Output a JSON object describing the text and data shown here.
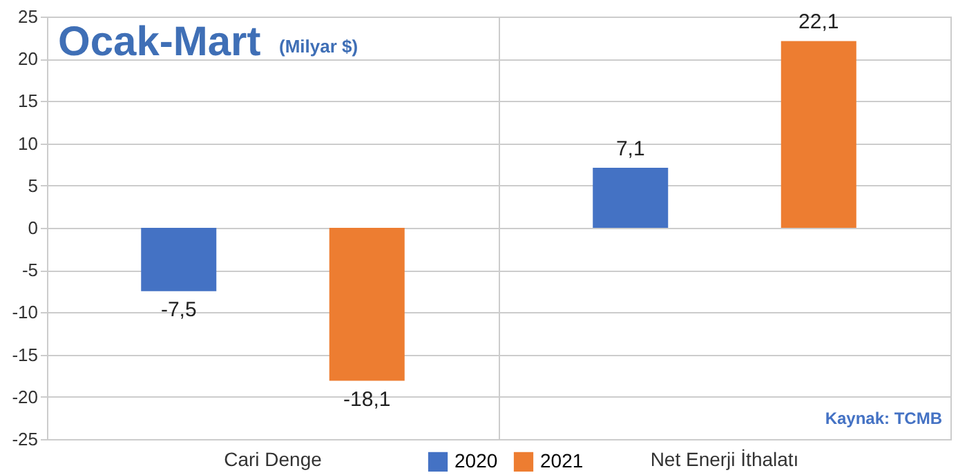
{
  "chart_data": {
    "type": "bar",
    "title": "Ocak-Mart",
    "subtitle": "(Milyar $)",
    "categories": [
      "Cari Denge",
      "Net Enerji İthalatı"
    ],
    "series": [
      {
        "name": "2020",
        "color": "#4472c4",
        "values": [
          -7.5,
          7.1
        ],
        "value_labels": [
          "-7,5",
          "7,1"
        ]
      },
      {
        "name": "2021",
        "color": "#ed7d31",
        "values": [
          -18.1,
          22.1
        ],
        "value_labels": [
          "-18,1",
          "22,1"
        ]
      }
    ],
    "ylim": [
      -25,
      25
    ],
    "yticks": [
      -25,
      -20,
      -15,
      -10,
      -5,
      0,
      5,
      10,
      15,
      20,
      25
    ],
    "grid": true,
    "legend": "bottom",
    "annotations": [
      "Kaynak: TCMB"
    ]
  }
}
